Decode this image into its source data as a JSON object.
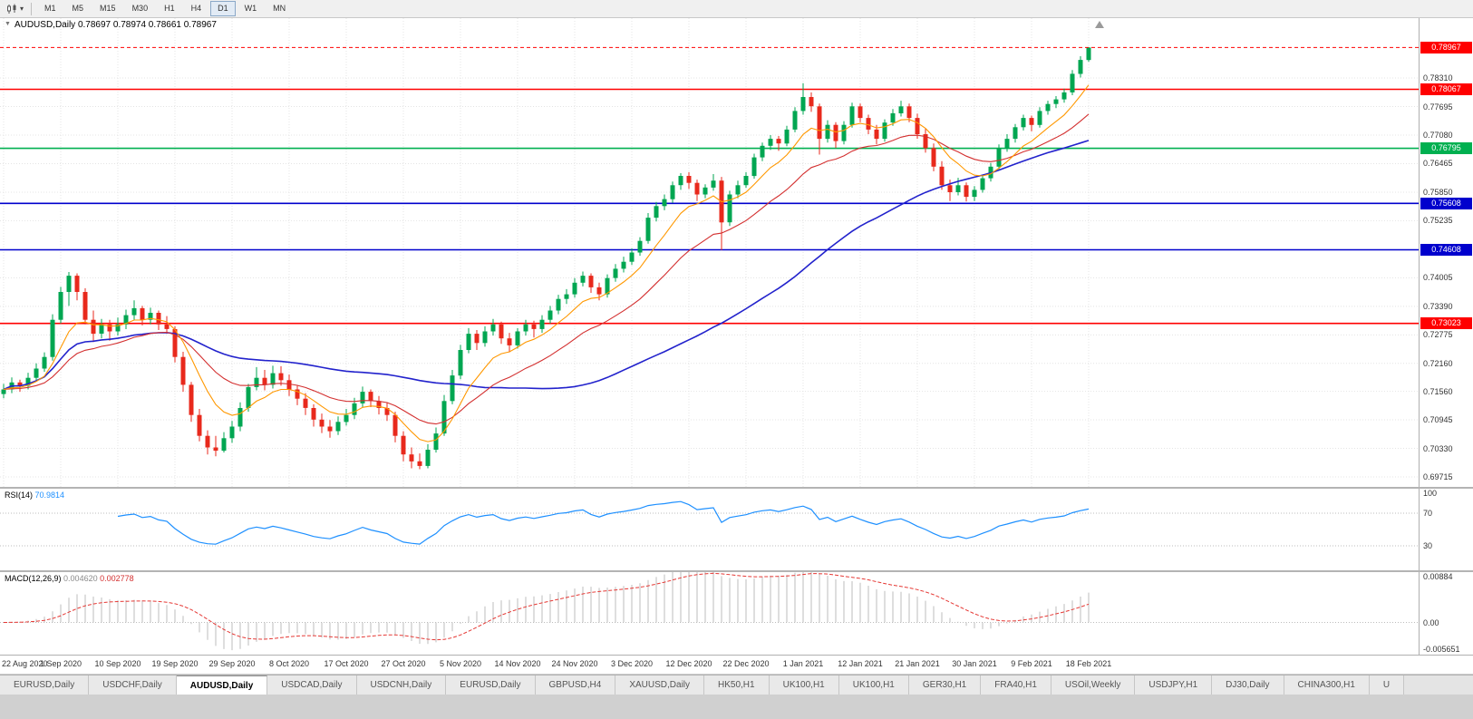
{
  "toolbar": {
    "chart_type_icon": "candlestick-chart-icon",
    "dropdown_caret": "▾",
    "timeframes": [
      "M1",
      "M5",
      "M15",
      "M30",
      "H1",
      "H4",
      "D1",
      "W1",
      "MN"
    ],
    "active": "D1"
  },
  "chart_header": {
    "collapse_icon": "▼",
    "symbol_period": "AUDUSD,Daily",
    "ohlc": "0.78697 0.78974 0.78661 0.78967"
  },
  "rsi_panel": {
    "label": "RSI(14)",
    "value": "70.9814",
    "axis_labels": [
      "100",
      "70",
      "30"
    ],
    "axis_values": [
      100,
      70,
      30
    ],
    "levels": [
      70,
      30
    ]
  },
  "macd_panel": {
    "label": "MACD(12,26,9)",
    "value_main": "0.004620",
    "value_signal": "0.002778",
    "axis_labels": [
      "0.00884",
      "0.00",
      "-0.005651"
    ]
  },
  "tabs": {
    "items": [
      "EURUSD,Daily",
      "USDCHF,Daily",
      "AUDUSD,Daily",
      "USDCAD,Daily",
      "USDCNH,Daily",
      "EURUSD,Daily",
      "GBPUSD,H4",
      "XAUUSD,Daily",
      "HK50,H1",
      "UK100,H1",
      "UK100,H1",
      "GER30,H1",
      "FRA40,H1",
      "USOil,Weekly",
      "USDJPY,H1",
      "DJ30,Daily",
      "CHINA300,H1",
      "U"
    ],
    "active_index": 2
  },
  "colors": {
    "up": "#00A651",
    "down": "#E8291C",
    "ma_fast": "#FF9800",
    "ma_mid": "#D32F2F",
    "ma_slow": "#2222CC",
    "rsi": "#1E90FF",
    "macd_hist": "#BDBDBD",
    "macd_signal": "#E53935",
    "grid": "#E4E4E4",
    "level_red": "#FF0000",
    "level_green": "#00B050",
    "level_blue": "#0000CD"
  },
  "chart_data": {
    "type": "candlestick",
    "title": "AUDUSD,Daily",
    "current_price": "0.78967",
    "last_bar_ohlc": [
      0.78697,
      0.78974,
      0.78661,
      0.78967
    ],
    "y_range": [
      0.695,
      0.796
    ],
    "y_ticks": [
      "0.78310",
      "0.77695",
      "0.77080",
      "0.76465",
      "0.75850",
      "0.75235",
      "0.74005",
      "0.73390",
      "0.72775",
      "0.72160",
      "0.71560",
      "0.70945",
      "0.70330",
      "0.69715"
    ],
    "horizontal_lines": [
      {
        "price": 0.78067,
        "color": "#FF0000"
      },
      {
        "price": 0.76795,
        "color": "#00B050"
      },
      {
        "price": 0.75608,
        "color": "#0000CD"
      },
      {
        "price": 0.74608,
        "color": "#0000CD"
      },
      {
        "price": 0.73023,
        "color": "#FF0000"
      }
    ],
    "x_tick_labels": [
      "22 Aug 2020",
      "1 Sep 2020",
      "10 Sep 2020",
      "19 Sep 2020",
      "29 Sep 2020",
      "8 Oct 2020",
      "17 Oct 2020",
      "27 Oct 2020",
      "5 Nov 2020",
      "14 Nov 2020",
      "24 Nov 2020",
      "3 Dec 2020",
      "12 Dec 2020",
      "22 Dec 2020",
      "1 Jan 2021",
      "12 Jan 2021",
      "21 Jan 2021",
      "30 Jan 2021",
      "9 Feb 2021",
      "18 Feb 2021"
    ],
    "bars_between_labels": 7,
    "layout": {
      "bar_spacing_px": 9,
      "first_bar_x": 4
    },
    "overlays": [
      "ema-fast-orange",
      "ema-mid-red",
      "sma-slow-blue"
    ],
    "rsi_scale": [
      0,
      100
    ],
    "macd_scale": [
      -0.005651,
      0.00884
    ],
    "candles_ohlc": [
      [
        0.715,
        0.7172,
        0.7141,
        0.716
      ],
      [
        0.716,
        0.7186,
        0.7152,
        0.7175
      ],
      [
        0.7175,
        0.7181,
        0.7155,
        0.7168
      ],
      [
        0.7168,
        0.7196,
        0.716,
        0.7185
      ],
      [
        0.7185,
        0.7216,
        0.7178,
        0.7205
      ],
      [
        0.7205,
        0.724,
        0.7198,
        0.723
      ],
      [
        0.723,
        0.7322,
        0.7222,
        0.731
      ],
      [
        0.731,
        0.7381,
        0.7302,
        0.737
      ],
      [
        0.737,
        0.7413,
        0.734,
        0.7405
      ],
      [
        0.7405,
        0.741,
        0.7352,
        0.737
      ],
      [
        0.737,
        0.7378,
        0.73,
        0.731
      ],
      [
        0.731,
        0.733,
        0.7262,
        0.728
      ],
      [
        0.728,
        0.7312,
        0.727,
        0.73
      ],
      [
        0.73,
        0.731,
        0.7265,
        0.7285
      ],
      [
        0.7285,
        0.7315,
        0.7276,
        0.73
      ],
      [
        0.73,
        0.7332,
        0.729,
        0.732
      ],
      [
        0.732,
        0.7352,
        0.731,
        0.7335
      ],
      [
        0.7335,
        0.734,
        0.7298,
        0.731
      ],
      [
        0.731,
        0.7336,
        0.73,
        0.7325
      ],
      [
        0.7325,
        0.733,
        0.7288,
        0.73
      ],
      [
        0.73,
        0.7318,
        0.728,
        0.729
      ],
      [
        0.729,
        0.7296,
        0.7218,
        0.723
      ],
      [
        0.723,
        0.7241,
        0.7155,
        0.717
      ],
      [
        0.717,
        0.7176,
        0.709,
        0.7105
      ],
      [
        0.7105,
        0.7118,
        0.7048,
        0.706
      ],
      [
        0.706,
        0.7072,
        0.702,
        0.7035
      ],
      [
        0.7035,
        0.706,
        0.7016,
        0.7028
      ],
      [
        0.7028,
        0.7068,
        0.7024,
        0.7055
      ],
      [
        0.7055,
        0.7092,
        0.7045,
        0.708
      ],
      [
        0.708,
        0.7132,
        0.707,
        0.712
      ],
      [
        0.712,
        0.7172,
        0.7112,
        0.7165
      ],
      [
        0.7165,
        0.7208,
        0.7158,
        0.7185
      ],
      [
        0.7185,
        0.7202,
        0.7158,
        0.717
      ],
      [
        0.717,
        0.7211,
        0.7162,
        0.7195
      ],
      [
        0.7195,
        0.721,
        0.7168,
        0.718
      ],
      [
        0.718,
        0.7192,
        0.7146,
        0.716
      ],
      [
        0.716,
        0.7168,
        0.7126,
        0.714
      ],
      [
        0.714,
        0.7152,
        0.7105,
        0.712
      ],
      [
        0.712,
        0.7128,
        0.708,
        0.7095
      ],
      [
        0.7095,
        0.7108,
        0.7066,
        0.708
      ],
      [
        0.708,
        0.7094,
        0.7056,
        0.707
      ],
      [
        0.707,
        0.7102,
        0.7062,
        0.709
      ],
      [
        0.709,
        0.7118,
        0.7082,
        0.7105
      ],
      [
        0.7105,
        0.7142,
        0.7096,
        0.713
      ],
      [
        0.713,
        0.7166,
        0.7122,
        0.7155
      ],
      [
        0.7155,
        0.716,
        0.7122,
        0.7135
      ],
      [
        0.7135,
        0.7146,
        0.7106,
        0.712
      ],
      [
        0.712,
        0.7132,
        0.7092,
        0.7105
      ],
      [
        0.7105,
        0.7112,
        0.7046,
        0.706
      ],
      [
        0.706,
        0.707,
        0.7005,
        0.702
      ],
      [
        0.702,
        0.7035,
        0.699,
        0.7005
      ],
      [
        0.7005,
        0.7022,
        0.6988,
        0.6995
      ],
      [
        0.6995,
        0.7042,
        0.699,
        0.703
      ],
      [
        0.703,
        0.7078,
        0.7024,
        0.7065
      ],
      [
        0.7065,
        0.7148,
        0.706,
        0.7135
      ],
      [
        0.7135,
        0.7202,
        0.7128,
        0.719
      ],
      [
        0.719,
        0.7256,
        0.7182,
        0.7245
      ],
      [
        0.7245,
        0.7292,
        0.7238,
        0.728
      ],
      [
        0.728,
        0.7288,
        0.7245,
        0.726
      ],
      [
        0.726,
        0.7296,
        0.7252,
        0.7285
      ],
      [
        0.7285,
        0.7312,
        0.7276,
        0.73
      ],
      [
        0.73,
        0.7306,
        0.7258,
        0.727
      ],
      [
        0.727,
        0.7282,
        0.724,
        0.7255
      ],
      [
        0.7255,
        0.7292,
        0.7248,
        0.7285
      ],
      [
        0.7285,
        0.731,
        0.7276,
        0.73
      ],
      [
        0.73,
        0.7308,
        0.7272,
        0.729
      ],
      [
        0.729,
        0.732,
        0.7282,
        0.731
      ],
      [
        0.731,
        0.734,
        0.7302,
        0.733
      ],
      [
        0.733,
        0.7364,
        0.7322,
        0.7355
      ],
      [
        0.7355,
        0.7376,
        0.7344,
        0.7365
      ],
      [
        0.7365,
        0.74,
        0.7358,
        0.739
      ],
      [
        0.739,
        0.7414,
        0.7382,
        0.7405
      ],
      [
        0.7405,
        0.741,
        0.7368,
        0.738
      ],
      [
        0.738,
        0.739,
        0.7352,
        0.7365
      ],
      [
        0.7365,
        0.7408,
        0.7358,
        0.74
      ],
      [
        0.74,
        0.743,
        0.7392,
        0.742
      ],
      [
        0.742,
        0.7446,
        0.7412,
        0.7435
      ],
      [
        0.7435,
        0.7464,
        0.7428,
        0.7455
      ],
      [
        0.7455,
        0.7488,
        0.7448,
        0.748
      ],
      [
        0.748,
        0.754,
        0.7474,
        0.753
      ],
      [
        0.753,
        0.7564,
        0.7522,
        0.7555
      ],
      [
        0.7555,
        0.758,
        0.7546,
        0.757
      ],
      [
        0.757,
        0.7608,
        0.7562,
        0.76
      ],
      [
        0.76,
        0.7626,
        0.759,
        0.762
      ],
      [
        0.762,
        0.7628,
        0.7592,
        0.7605
      ],
      [
        0.7605,
        0.7612,
        0.7566,
        0.758
      ],
      [
        0.758,
        0.7602,
        0.7572,
        0.7595
      ],
      [
        0.7595,
        0.7624,
        0.7588,
        0.761
      ],
      [
        0.761,
        0.7618,
        0.746,
        0.752
      ],
      [
        0.752,
        0.7588,
        0.7512,
        0.758
      ],
      [
        0.758,
        0.761,
        0.7572,
        0.76
      ],
      [
        0.76,
        0.7628,
        0.7594,
        0.762
      ],
      [
        0.762,
        0.7668,
        0.7614,
        0.766
      ],
      [
        0.766,
        0.7692,
        0.7652,
        0.7685
      ],
      [
        0.7685,
        0.7708,
        0.7676,
        0.77
      ],
      [
        0.77,
        0.7706,
        0.7674,
        0.769
      ],
      [
        0.769,
        0.7728,
        0.7684,
        0.772
      ],
      [
        0.772,
        0.7768,
        0.7714,
        0.776
      ],
      [
        0.776,
        0.782,
        0.7752,
        0.779
      ],
      [
        0.779,
        0.78,
        0.7758,
        0.777
      ],
      [
        0.777,
        0.7776,
        0.7666,
        0.77
      ],
      [
        0.77,
        0.774,
        0.7692,
        0.773
      ],
      [
        0.773,
        0.7736,
        0.768,
        0.7695
      ],
      [
        0.7695,
        0.7738,
        0.7688,
        0.773
      ],
      [
        0.773,
        0.7778,
        0.7724,
        0.777
      ],
      [
        0.777,
        0.7776,
        0.7736,
        0.7745
      ],
      [
        0.7745,
        0.7752,
        0.771,
        0.772
      ],
      [
        0.772,
        0.773,
        0.7688,
        0.77
      ],
      [
        0.77,
        0.7742,
        0.7694,
        0.7735
      ],
      [
        0.7735,
        0.7764,
        0.7728,
        0.7755
      ],
      [
        0.7755,
        0.7782,
        0.7748,
        0.777
      ],
      [
        0.777,
        0.7776,
        0.7736,
        0.7745
      ],
      [
        0.7745,
        0.7754,
        0.77,
        0.771
      ],
      [
        0.771,
        0.7722,
        0.767,
        0.768
      ],
      [
        0.768,
        0.769,
        0.763,
        0.764
      ],
      [
        0.764,
        0.7652,
        0.759,
        0.76
      ],
      [
        0.76,
        0.7612,
        0.7566,
        0.7585
      ],
      [
        0.7585,
        0.7616,
        0.7578,
        0.76
      ],
      [
        0.76,
        0.7606,
        0.7565,
        0.7575
      ],
      [
        0.7575,
        0.7598,
        0.7566,
        0.759
      ],
      [
        0.759,
        0.7622,
        0.7584,
        0.7615
      ],
      [
        0.7615,
        0.7648,
        0.7608,
        0.764
      ],
      [
        0.764,
        0.7688,
        0.7634,
        0.768
      ],
      [
        0.768,
        0.771,
        0.7672,
        0.77
      ],
      [
        0.77,
        0.7732,
        0.7692,
        0.7725
      ],
      [
        0.7725,
        0.7752,
        0.7718,
        0.7745
      ],
      [
        0.7745,
        0.775,
        0.7716,
        0.773
      ],
      [
        0.773,
        0.7768,
        0.7724,
        0.776
      ],
      [
        0.776,
        0.7782,
        0.7752,
        0.7775
      ],
      [
        0.7775,
        0.7792,
        0.7766,
        0.7785
      ],
      [
        0.7785,
        0.7808,
        0.7778,
        0.78
      ],
      [
        0.78,
        0.7848,
        0.7794,
        0.784
      ],
      [
        0.784,
        0.7878,
        0.7832,
        0.787
      ],
      [
        0.78697,
        0.78974,
        0.78661,
        0.78967
      ]
    ]
  }
}
